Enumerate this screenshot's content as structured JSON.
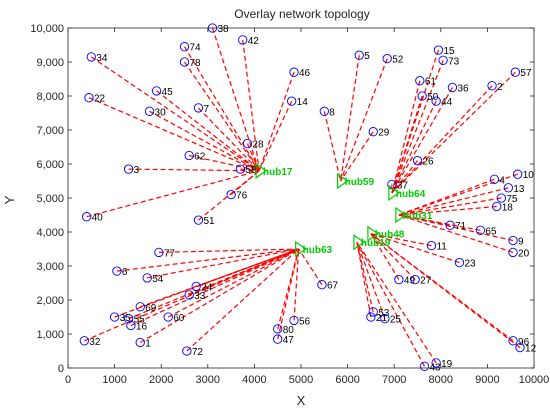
{
  "chart_data": {
    "type": "scatter",
    "title": "Overlay network topology",
    "xlabel": "X",
    "ylabel": "Y",
    "xlim": [
      0,
      10000
    ],
    "ylim": [
      0,
      10000
    ],
    "xticks": [
      0,
      1000,
      2000,
      3000,
      4000,
      5000,
      6000,
      7000,
      8000,
      9000,
      10000
    ],
    "yticks": [
      0,
      1000,
      2000,
      3000,
      4000,
      5000,
      6000,
      7000,
      8000,
      9000,
      10000
    ],
    "xtick_labels": [
      "0",
      "1000",
      "2000",
      "3000",
      "4000",
      "5000",
      "6000",
      "7000",
      "8000",
      "9000",
      "10000"
    ],
    "ytick_labels": [
      "0",
      "1,000",
      "2,000",
      "3,000",
      "4,000",
      "5,000",
      "6,000",
      "7,000",
      "8,000",
      "9,000",
      "10,000"
    ],
    "grid": false,
    "colors": {
      "node": "#0000ff",
      "edge": "#ff0000",
      "hub": "#00cc00",
      "axis": "#262626"
    },
    "hubs": [
      {
        "id": "hub17",
        "label": "hub17",
        "x": 4100,
        "y": 5800
      },
      {
        "id": "hub59",
        "label": "hub59",
        "x": 5850,
        "y": 5500
      },
      {
        "id": "hub64",
        "label": "hub64",
        "x": 6950,
        "y": 5150
      },
      {
        "id": "hub31",
        "label": "hub31",
        "x": 7100,
        "y": 4500
      },
      {
        "id": "hub48",
        "label": "hub48",
        "x": 6500,
        "y": 3950
      },
      {
        "id": "hub19",
        "label": "hub19",
        "x": 6200,
        "y": 3700
      },
      {
        "id": "hub63",
        "label": "hub63",
        "x": 4950,
        "y": 3500
      }
    ],
    "nodes": [
      {
        "label": "34",
        "x": 500,
        "y": 9150,
        "hub": "hub17"
      },
      {
        "label": "22",
        "x": 450,
        "y": 7950,
        "hub": "hub17"
      },
      {
        "label": "74",
        "x": 2500,
        "y": 9450,
        "hub": "hub17"
      },
      {
        "label": "38",
        "x": 3100,
        "y": 10000,
        "hub": "hub17"
      },
      {
        "label": "42",
        "x": 3750,
        "y": 9650,
        "hub": "hub17"
      },
      {
        "label": "78",
        "x": 2500,
        "y": 9000,
        "hub": "hub17"
      },
      {
        "label": "45",
        "x": 1900,
        "y": 8150,
        "hub": "hub17"
      },
      {
        "label": "30",
        "x": 1750,
        "y": 7550,
        "hub": "hub17"
      },
      {
        "label": "7",
        "x": 2800,
        "y": 7650,
        "hub": "hub17"
      },
      {
        "label": "46",
        "x": 4850,
        "y": 8700,
        "hub": "hub17"
      },
      {
        "label": "14",
        "x": 4800,
        "y": 7850,
        "hub": "hub17"
      },
      {
        "label": "62",
        "x": 2600,
        "y": 6250,
        "hub": "hub17"
      },
      {
        "label": "28",
        "x": 3850,
        "y": 6600,
        "hub": "hub17"
      },
      {
        "label": "58",
        "x": 3700,
        "y": 5850,
        "hub": "hub17"
      },
      {
        "label": "3",
        "x": 1300,
        "y": 5850,
        "hub": "hub17"
      },
      {
        "label": "76",
        "x": 3500,
        "y": 5100,
        "hub": "hub17"
      },
      {
        "label": "51",
        "x": 2800,
        "y": 4350,
        "hub": "hub17"
      },
      {
        "label": "40",
        "x": 400,
        "y": 4450,
        "hub": "hub17"
      },
      {
        "label": "5",
        "x": 6250,
        "y": 9200,
        "hub": "hub59"
      },
      {
        "label": "52",
        "x": 6850,
        "y": 9100,
        "hub": "hub59"
      },
      {
        "label": "8",
        "x": 5500,
        "y": 7550,
        "hub": "hub59"
      },
      {
        "label": "29",
        "x": 6550,
        "y": 6950,
        "hub": "hub59"
      },
      {
        "label": "15",
        "x": 7950,
        "y": 9350,
        "hub": "hub64"
      },
      {
        "label": "73",
        "x": 8050,
        "y": 9050,
        "hub": "hub64"
      },
      {
        "label": "61",
        "x": 7550,
        "y": 8450,
        "hub": "hub64"
      },
      {
        "label": "36",
        "x": 8250,
        "y": 8250,
        "hub": "hub64"
      },
      {
        "label": "50",
        "x": 7600,
        "y": 8000,
        "hub": "hub64"
      },
      {
        "label": "44",
        "x": 7900,
        "y": 7850,
        "hub": "hub64"
      },
      {
        "label": "2",
        "x": 9100,
        "y": 8300,
        "hub": "hub64"
      },
      {
        "label": "57",
        "x": 9600,
        "y": 8700,
        "hub": "hub64"
      },
      {
        "label": "26",
        "x": 7500,
        "y": 6100,
        "hub": "hub64"
      },
      {
        "label": "37",
        "x": 6950,
        "y": 5400,
        "hub": "hub64"
      },
      {
        "label": "10",
        "x": 9650,
        "y": 5700,
        "hub": "hub31"
      },
      {
        "label": "4",
        "x": 9150,
        "y": 5550,
        "hub": "hub31"
      },
      {
        "label": "13",
        "x": 9450,
        "y": 5300,
        "hub": "hub31"
      },
      {
        "label": "75",
        "x": 9300,
        "y": 5000,
        "hub": "hub31"
      },
      {
        "label": "18",
        "x": 9200,
        "y": 4750,
        "hub": "hub31"
      },
      {
        "label": "71",
        "x": 8200,
        "y": 4200,
        "hub": "hub31"
      },
      {
        "label": "65",
        "x": 8850,
        "y": 4050,
        "hub": "hub31"
      },
      {
        "label": "9",
        "x": 9550,
        "y": 3750,
        "hub": "hub31"
      },
      {
        "label": "20",
        "x": 9550,
        "y": 3400,
        "hub": "hub31"
      },
      {
        "label": "11",
        "x": 7800,
        "y": 3600,
        "hub": "hub48"
      },
      {
        "label": "23",
        "x": 8400,
        "y": 3100,
        "hub": "hub48"
      },
      {
        "label": "49",
        "x": 7100,
        "y": 2600,
        "hub": "hub48"
      },
      {
        "label": "27",
        "x": 7450,
        "y": 2600,
        "hub": "hub48"
      },
      {
        "label": "96",
        "x": 9550,
        "y": 800,
        "hub": "hub48"
      },
      {
        "label": "12",
        "x": 9700,
        "y": 600,
        "hub": "hub48"
      },
      {
        "label": "53",
        "x": 6550,
        "y": 1650,
        "hub": "hub19"
      },
      {
        "label": "21",
        "x": 6500,
        "y": 1500,
        "hub": "hub19"
      },
      {
        "label": "25",
        "x": 6800,
        "y": 1450,
        "hub": "hub19"
      },
      {
        "label": "43",
        "x": 7650,
        "y": 50,
        "hub": "hub19"
      },
      {
        "label": "19",
        "x": 7900,
        "y": 150,
        "hub": "hub19"
      },
      {
        "label": "77",
        "x": 1950,
        "y": 3400,
        "hub": "hub63"
      },
      {
        "label": "6",
        "x": 1050,
        "y": 2850,
        "hub": "hub63"
      },
      {
        "label": "54",
        "x": 1700,
        "y": 2650,
        "hub": "hub63"
      },
      {
        "label": "24",
        "x": 2750,
        "y": 2400,
        "hub": "hub63"
      },
      {
        "label": "33",
        "x": 2600,
        "y": 2150,
        "hub": "hub63"
      },
      {
        "label": "69",
        "x": 1550,
        "y": 1800,
        "hub": "hub63"
      },
      {
        "label": "35",
        "x": 1000,
        "y": 1500,
        "hub": "hub63"
      },
      {
        "label": "55",
        "x": 1300,
        "y": 1450,
        "hub": "hub63"
      },
      {
        "label": "16",
        "x": 1350,
        "y": 1250,
        "hub": "hub63"
      },
      {
        "label": "60",
        "x": 2150,
        "y": 1500,
        "hub": "hub63"
      },
      {
        "label": "32",
        "x": 350,
        "y": 800,
        "hub": "hub63"
      },
      {
        "label": "1",
        "x": 1550,
        "y": 750,
        "hub": "hub63"
      },
      {
        "label": "72",
        "x": 2550,
        "y": 500,
        "hub": "hub63"
      },
      {
        "label": "56",
        "x": 4850,
        "y": 1400,
        "hub": "hub63"
      },
      {
        "label": "80",
        "x": 4500,
        "y": 1150,
        "hub": "hub63"
      },
      {
        "label": "47",
        "x": 4500,
        "y": 850,
        "hub": "hub63"
      },
      {
        "label": "67",
        "x": 5450,
        "y": 2450,
        "hub": "hub63"
      }
    ]
  }
}
